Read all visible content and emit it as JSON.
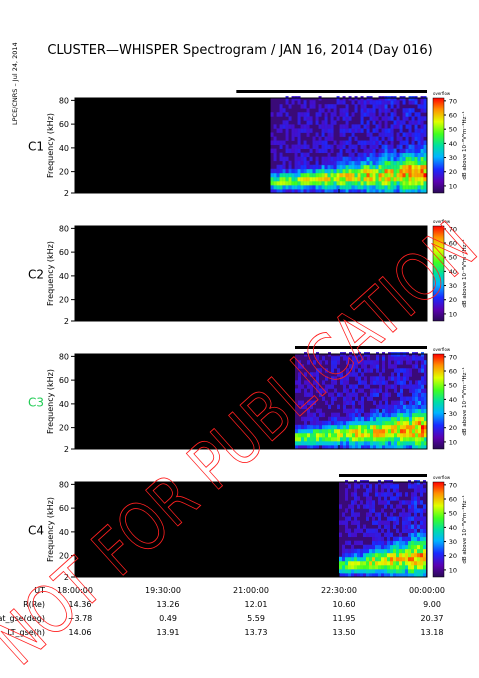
{
  "title": "CLUSTER—WHISPER Spectrogram / JAN 16, 2014 (Day 016)",
  "side_label": "LPCE/CNRS – Jul 24, 2014",
  "watermark": "NOT FOR PUBLICATION",
  "chart_data": {
    "type": "heatmap",
    "panels": [
      {
        "id": "C1",
        "label": "C1",
        "label_color": "#000000",
        "data_start": "21:20:00",
        "bar_start": "20:45:00"
      },
      {
        "id": "C2",
        "label": "C2",
        "label_color": "#000000",
        "data_start": null,
        "bar_start": null
      },
      {
        "id": "C3",
        "label": "C3",
        "label_color": "#22cc55",
        "data_start": "21:45:00",
        "bar_start": "21:45:00"
      },
      {
        "id": "C4",
        "label": "C4",
        "label_color": "#000000",
        "data_start": "22:30:00",
        "bar_start": "22:30:00"
      }
    ],
    "ylabel": "Frequency (kHz)",
    "yticks": [
      "2",
      "20",
      "40",
      "60",
      "80"
    ],
    "ylim": [
      2,
      82
    ],
    "colorbar": {
      "label": "dB above 10⁻⁸V²m⁻²Hz⁻¹",
      "top_label": "overflow",
      "ticks": [
        "10",
        "20",
        "30",
        "40",
        "50",
        "60",
        "70"
      ],
      "range": [
        5,
        72
      ]
    },
    "xlim": [
      "18:00:00",
      "00:00:00"
    ],
    "ephemeris": [
      {
        "label": "UT",
        "values": [
          "18:00:00",
          "19:30:00",
          "21:00:00",
          "22:30:00",
          "00:00:00"
        ]
      },
      {
        "label": "R(Re)",
        "values": [
          "14.36",
          "13.26",
          "12.01",
          "10.60",
          "9.00"
        ]
      },
      {
        "label": "Lat_gse(deg)",
        "values": [
          "−3.78",
          "0.49",
          "5.59",
          "11.95",
          "20.37"
        ]
      },
      {
        "label": "LT_gse(h)",
        "values": [
          "14.06",
          "13.91",
          "13.73",
          "13.50",
          "13.18"
        ]
      }
    ]
  }
}
